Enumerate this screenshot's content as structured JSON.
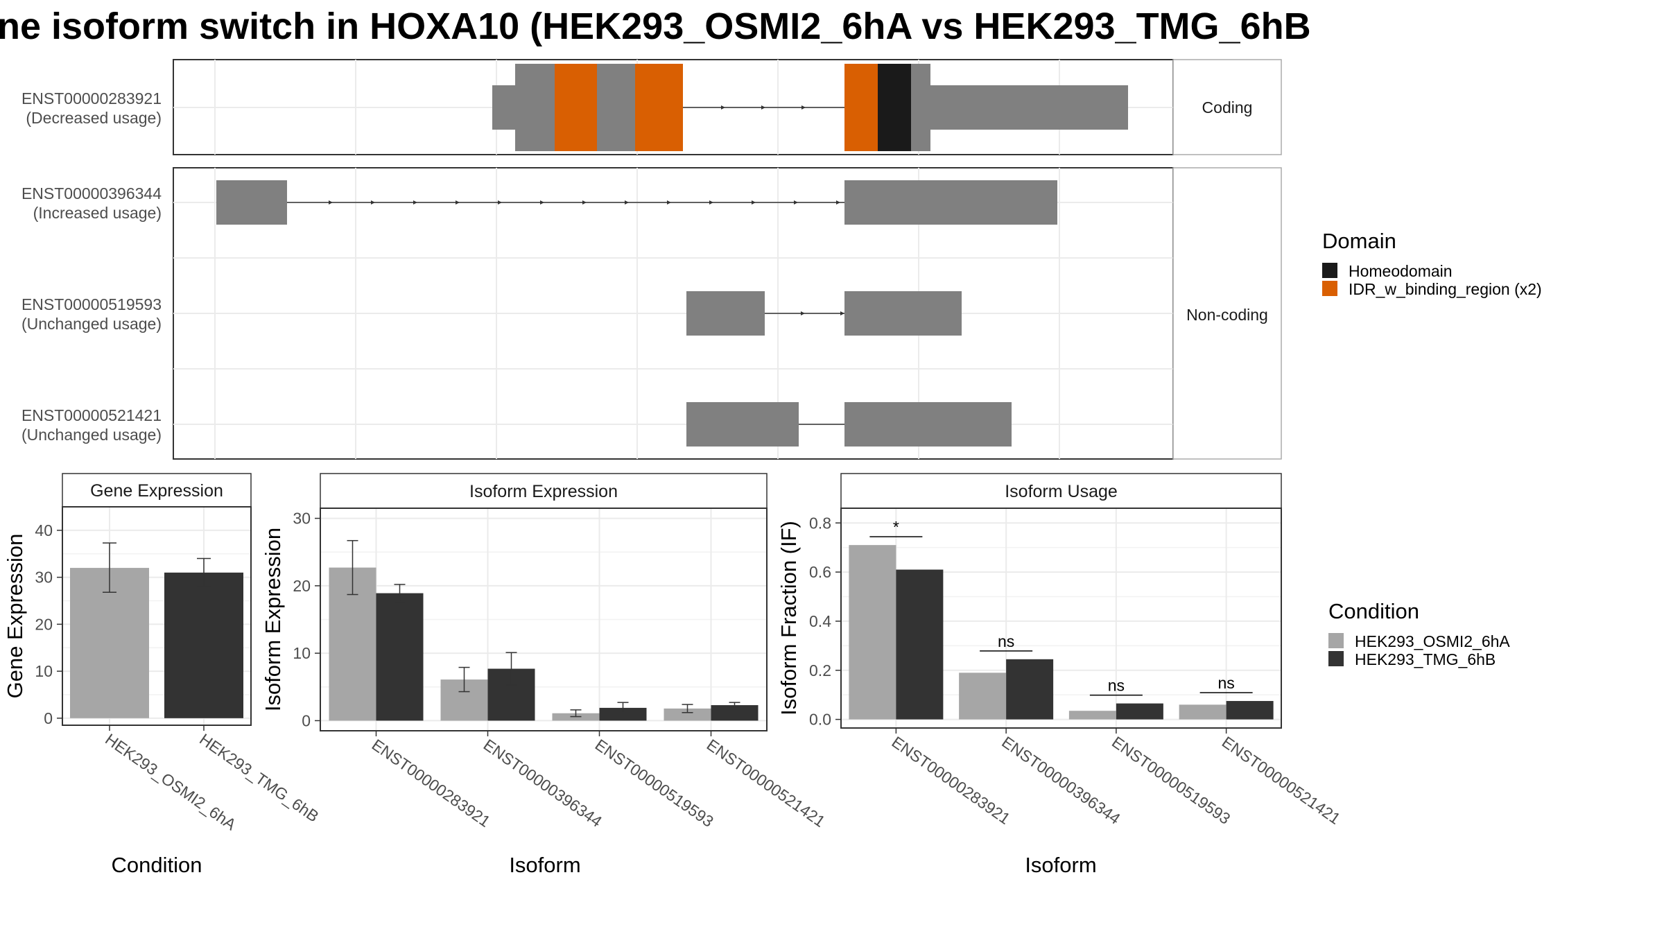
{
  "title": "ne isoform switch in HOXA10 (HEK293_OSMI2_6hA vs HEK293_TMG_6hB",
  "structure": {
    "transcripts": [
      {
        "id": "ENST00000283921",
        "usage": "(Decreased usage)",
        "group": "Coding"
      },
      {
        "id": "ENST00000396344",
        "usage": "(Increased usage)",
        "group": "Non-coding"
      },
      {
        "id": "ENST00000519593",
        "usage": "(Unchanged usage)",
        "group": "Non-coding"
      },
      {
        "id": "ENST00000521421",
        "usage": "(Unchanged usage)",
        "group": "Non-coding"
      }
    ],
    "facet_labels": [
      "Coding",
      "Non-coding"
    ]
  },
  "legend_domain": {
    "title": "Domain",
    "items": [
      {
        "label": "Homeodomain",
        "color": "#1a1a1a"
      },
      {
        "label": "IDR_w_binding_region (x2)",
        "color": "#d95f02"
      }
    ]
  },
  "legend_condition": {
    "title": "Condition",
    "items": [
      {
        "label": "HEK293_OSMI2_6hA",
        "color": "#a6a6a6"
      },
      {
        "label": "HEK293_TMG_6hB",
        "color": "#333333"
      }
    ]
  },
  "chart_data": [
    {
      "type": "bar",
      "panel": "Gene Expression",
      "xlabel": "Condition",
      "ylabel": "Gene Expression",
      "categories": [
        "HEK293_OSMI2_6hA",
        "HEK293_TMG_6hB"
      ],
      "values": [
        32.0,
        31.0
      ],
      "errors": [
        [
          26.8,
          37.3
        ],
        [
          28.0,
          34.0
        ]
      ],
      "colors": [
        "#a6a6a6",
        "#333333"
      ],
      "ylim": [
        -1.5,
        45
      ],
      "yticks": [
        0,
        10,
        20,
        30,
        40
      ]
    },
    {
      "type": "bar",
      "panel": "Isoform Expression",
      "xlabel": "Isoform",
      "ylabel": "Isoform Expression",
      "categories": [
        "ENST00000283921",
        "ENST00000396344",
        "ENST00000519593",
        "ENST00000521421"
      ],
      "series": [
        {
          "name": "HEK293_OSMI2_6hA",
          "values": [
            22.7,
            6.1,
            1.1,
            1.8
          ],
          "errors": [
            [
              18.7,
              26.7
            ],
            [
              4.3,
              7.9
            ],
            [
              0.6,
              1.6
            ],
            [
              1.2,
              2.4
            ]
          ]
        },
        {
          "name": "HEK293_TMG_6hB",
          "values": [
            18.9,
            7.7,
            1.9,
            2.3
          ],
          "errors": [
            [
              17.6,
              20.2
            ],
            [
              5.3,
              10.1
            ],
            [
              1.2,
              2.7
            ],
            [
              1.9,
              2.7
            ]
          ]
        }
      ],
      "ylim": [
        -1.5,
        31.5
      ],
      "yticks": [
        0,
        10,
        20,
        30
      ]
    },
    {
      "type": "bar",
      "panel": "Isoform Usage",
      "xlabel": "Isoform",
      "ylabel": "Isoform Fraction (IF)",
      "categories": [
        "ENST00000283921",
        "ENST00000396344",
        "ENST00000519593",
        "ENST00000521421"
      ],
      "series": [
        {
          "name": "HEK293_OSMI2_6hA",
          "values": [
            0.71,
            0.19,
            0.035,
            0.06
          ]
        },
        {
          "name": "HEK293_TMG_6hB",
          "values": [
            0.61,
            0.245,
            0.065,
            0.075
          ]
        }
      ],
      "significance": [
        "*",
        "ns",
        "ns",
        "ns"
      ],
      "ylim": [
        -0.035,
        0.86
      ],
      "yticks": [
        0.0,
        0.2,
        0.4,
        0.6,
        0.8
      ],
      "yticklabels": [
        "0.0",
        "0.2",
        "0.4",
        "0.6",
        "0.8"
      ]
    }
  ]
}
